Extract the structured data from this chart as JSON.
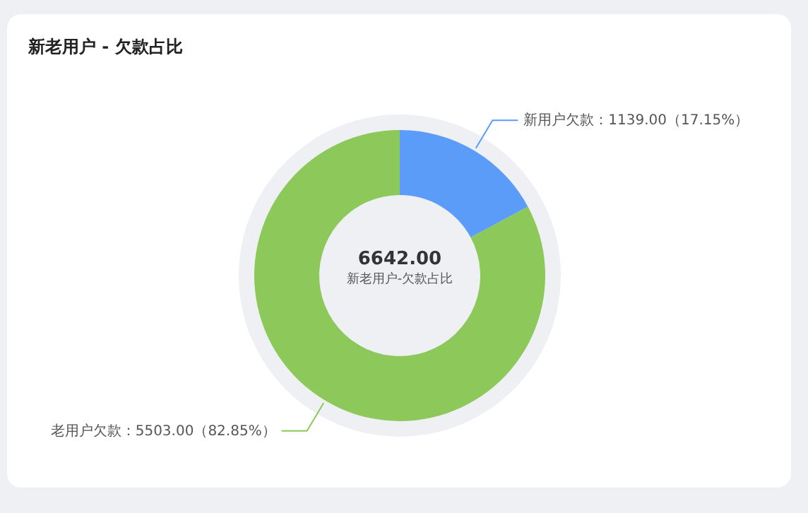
{
  "chart_data": {
    "type": "donut",
    "title": "新老用户 - 欠款占比",
    "categories": [
      "新用户欠款",
      "老用户欠款"
    ],
    "values": [
      1139.0,
      5503.0
    ],
    "value_labels": [
      "1139.00（17.15%）",
      "5503.00（82.85%）"
    ],
    "colors": [
      "#5b9cf8",
      "#8cc85a"
    ],
    "annotations": [
      "6642.00",
      "新老用户-欠款占比"
    ]
  }
}
